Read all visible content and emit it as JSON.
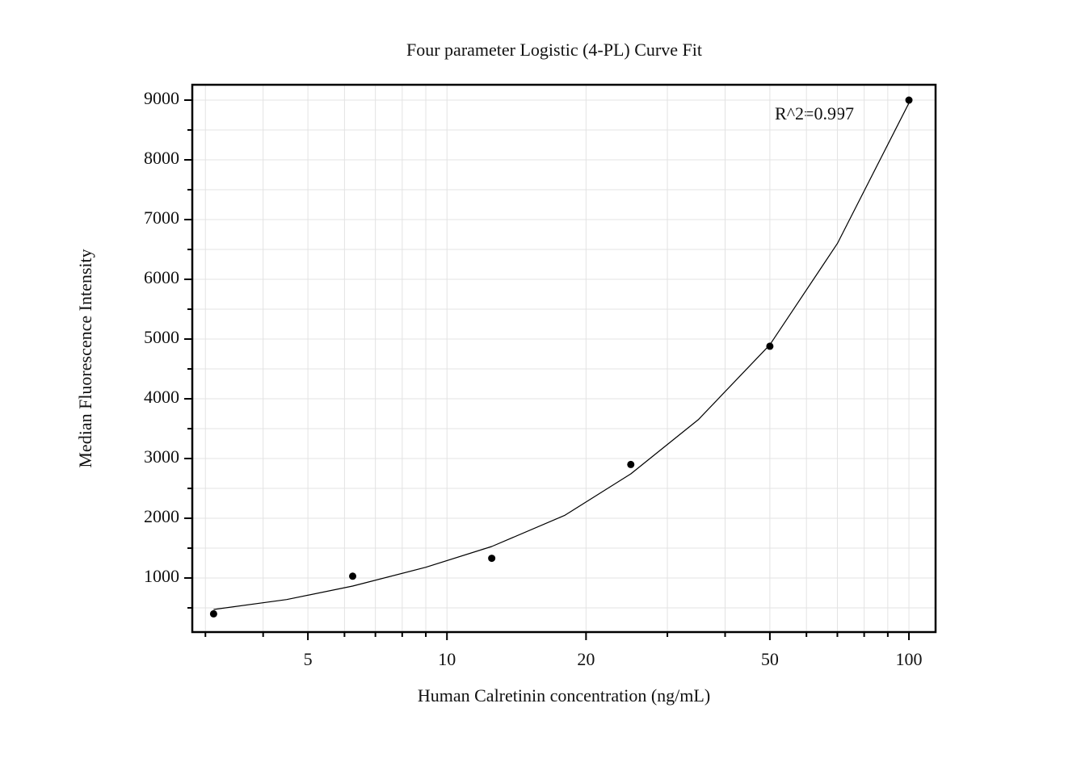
{
  "chart_data": {
    "type": "scatter",
    "title": "Four parameter Logistic (4-PL) Curve Fit",
    "x_label": "Human Calretinin concentration (ng/mL)",
    "y_label": "Median Fluorescence Intensity",
    "annotation": "R^2=0.997",
    "x_scale": "log",
    "grid": true,
    "xlim": [
      2.81,
      114.2
    ],
    "ylim": [
      95,
      9257
    ],
    "xticks": [
      5,
      10,
      20,
      50,
      100
    ],
    "xminorticks": [
      3,
      4,
      6,
      7,
      8,
      9,
      30,
      40,
      60,
      70,
      80,
      90
    ],
    "yticks": [
      1000,
      2000,
      3000,
      4000,
      5000,
      6000,
      7000,
      8000,
      9000
    ],
    "yminorticks": [
      500,
      1500,
      2500,
      3500,
      4500,
      5500,
      6500,
      7500,
      8500
    ],
    "series": [
      {
        "kind": "points",
        "color": "#000000",
        "x": [
          3.125,
          6.25,
          12.5,
          25,
          50,
          100
        ],
        "values": [
          400,
          1030,
          1330,
          2900,
          4880,
          9000
        ]
      },
      {
        "kind": "fit",
        "color": "#000000",
        "x": [
          3.125,
          4.5,
          6.25,
          9,
          12.5,
          18,
          25,
          35,
          50,
          70,
          100
        ],
        "values": [
          473,
          640,
          865,
          1180,
          1527,
          2050,
          2743,
          3650,
          4905,
          6600,
          8950
        ]
      }
    ]
  }
}
